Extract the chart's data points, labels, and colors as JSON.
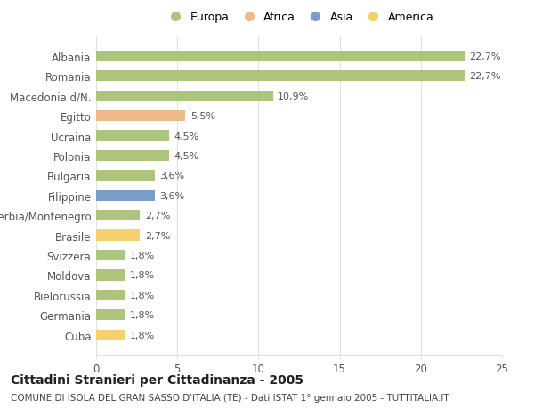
{
  "categories": [
    "Albania",
    "Romania",
    "Macedonia d/N.",
    "Egitto",
    "Ucraina",
    "Polonia",
    "Bulgaria",
    "Filippine",
    "Serbia/Montenegro",
    "Brasile",
    "Svizzera",
    "Moldova",
    "Bielorussia",
    "Germania",
    "Cuba"
  ],
  "values": [
    22.7,
    22.7,
    10.9,
    5.5,
    4.5,
    4.5,
    3.6,
    3.6,
    2.7,
    2.7,
    1.8,
    1.8,
    1.8,
    1.8,
    1.8
  ],
  "labels": [
    "22,7%",
    "22,7%",
    "10,9%",
    "5,5%",
    "4,5%",
    "4,5%",
    "3,6%",
    "3,6%",
    "2,7%",
    "2,7%",
    "1,8%",
    "1,8%",
    "1,8%",
    "1,8%",
    "1,8%"
  ],
  "colors": [
    "#adc47d",
    "#adc47d",
    "#adc47d",
    "#f0b98a",
    "#adc47d",
    "#adc47d",
    "#adc47d",
    "#7b9ec9",
    "#adc47d",
    "#f5d06e",
    "#adc47d",
    "#adc47d",
    "#adc47d",
    "#adc47d",
    "#f5d06e"
  ],
  "legend_labels": [
    "Europa",
    "Africa",
    "Asia",
    "America"
  ],
  "legend_colors": [
    "#adc47d",
    "#f0b98a",
    "#7b9ec9",
    "#f5d06e"
  ],
  "title": "Cittadini Stranieri per Cittadinanza - 2005",
  "subtitle": "COMUNE DI ISOLA DEL GRAN SASSO D'ITALIA (TE) - Dati ISTAT 1° gennaio 2005 - TUTTITALIA.IT",
  "xlim": [
    0,
    25
  ],
  "xticks": [
    0,
    5,
    10,
    15,
    20,
    25
  ],
  "background_color": "#ffffff",
  "grid_color": "#e0e0e0",
  "bar_height": 0.55,
  "title_fontsize": 10,
  "subtitle_fontsize": 7.5,
  "label_fontsize": 8,
  "tick_fontsize": 8.5,
  "legend_fontsize": 9
}
